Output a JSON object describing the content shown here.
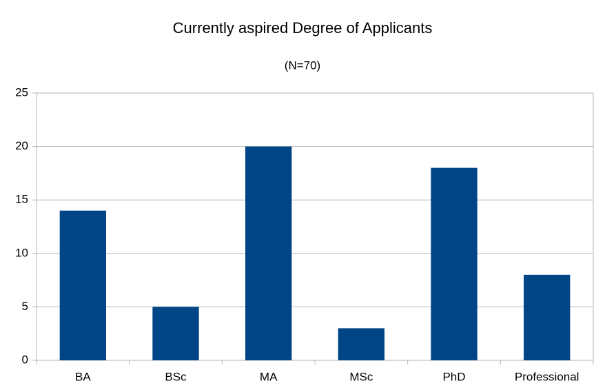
{
  "chart_data": {
    "type": "bar",
    "title": "Currently aspired Degree of Applicants",
    "subtitle": "(N=70)",
    "categories": [
      "BA",
      "BSc",
      "MA",
      "MSc",
      "PhD",
      "Professional"
    ],
    "values": [
      14,
      5,
      20,
      3,
      18,
      8
    ],
    "color": "#004586",
    "ylim": [
      0,
      25
    ],
    "yticks": [
      0,
      5,
      10,
      15,
      20,
      25
    ],
    "grid": true
  }
}
